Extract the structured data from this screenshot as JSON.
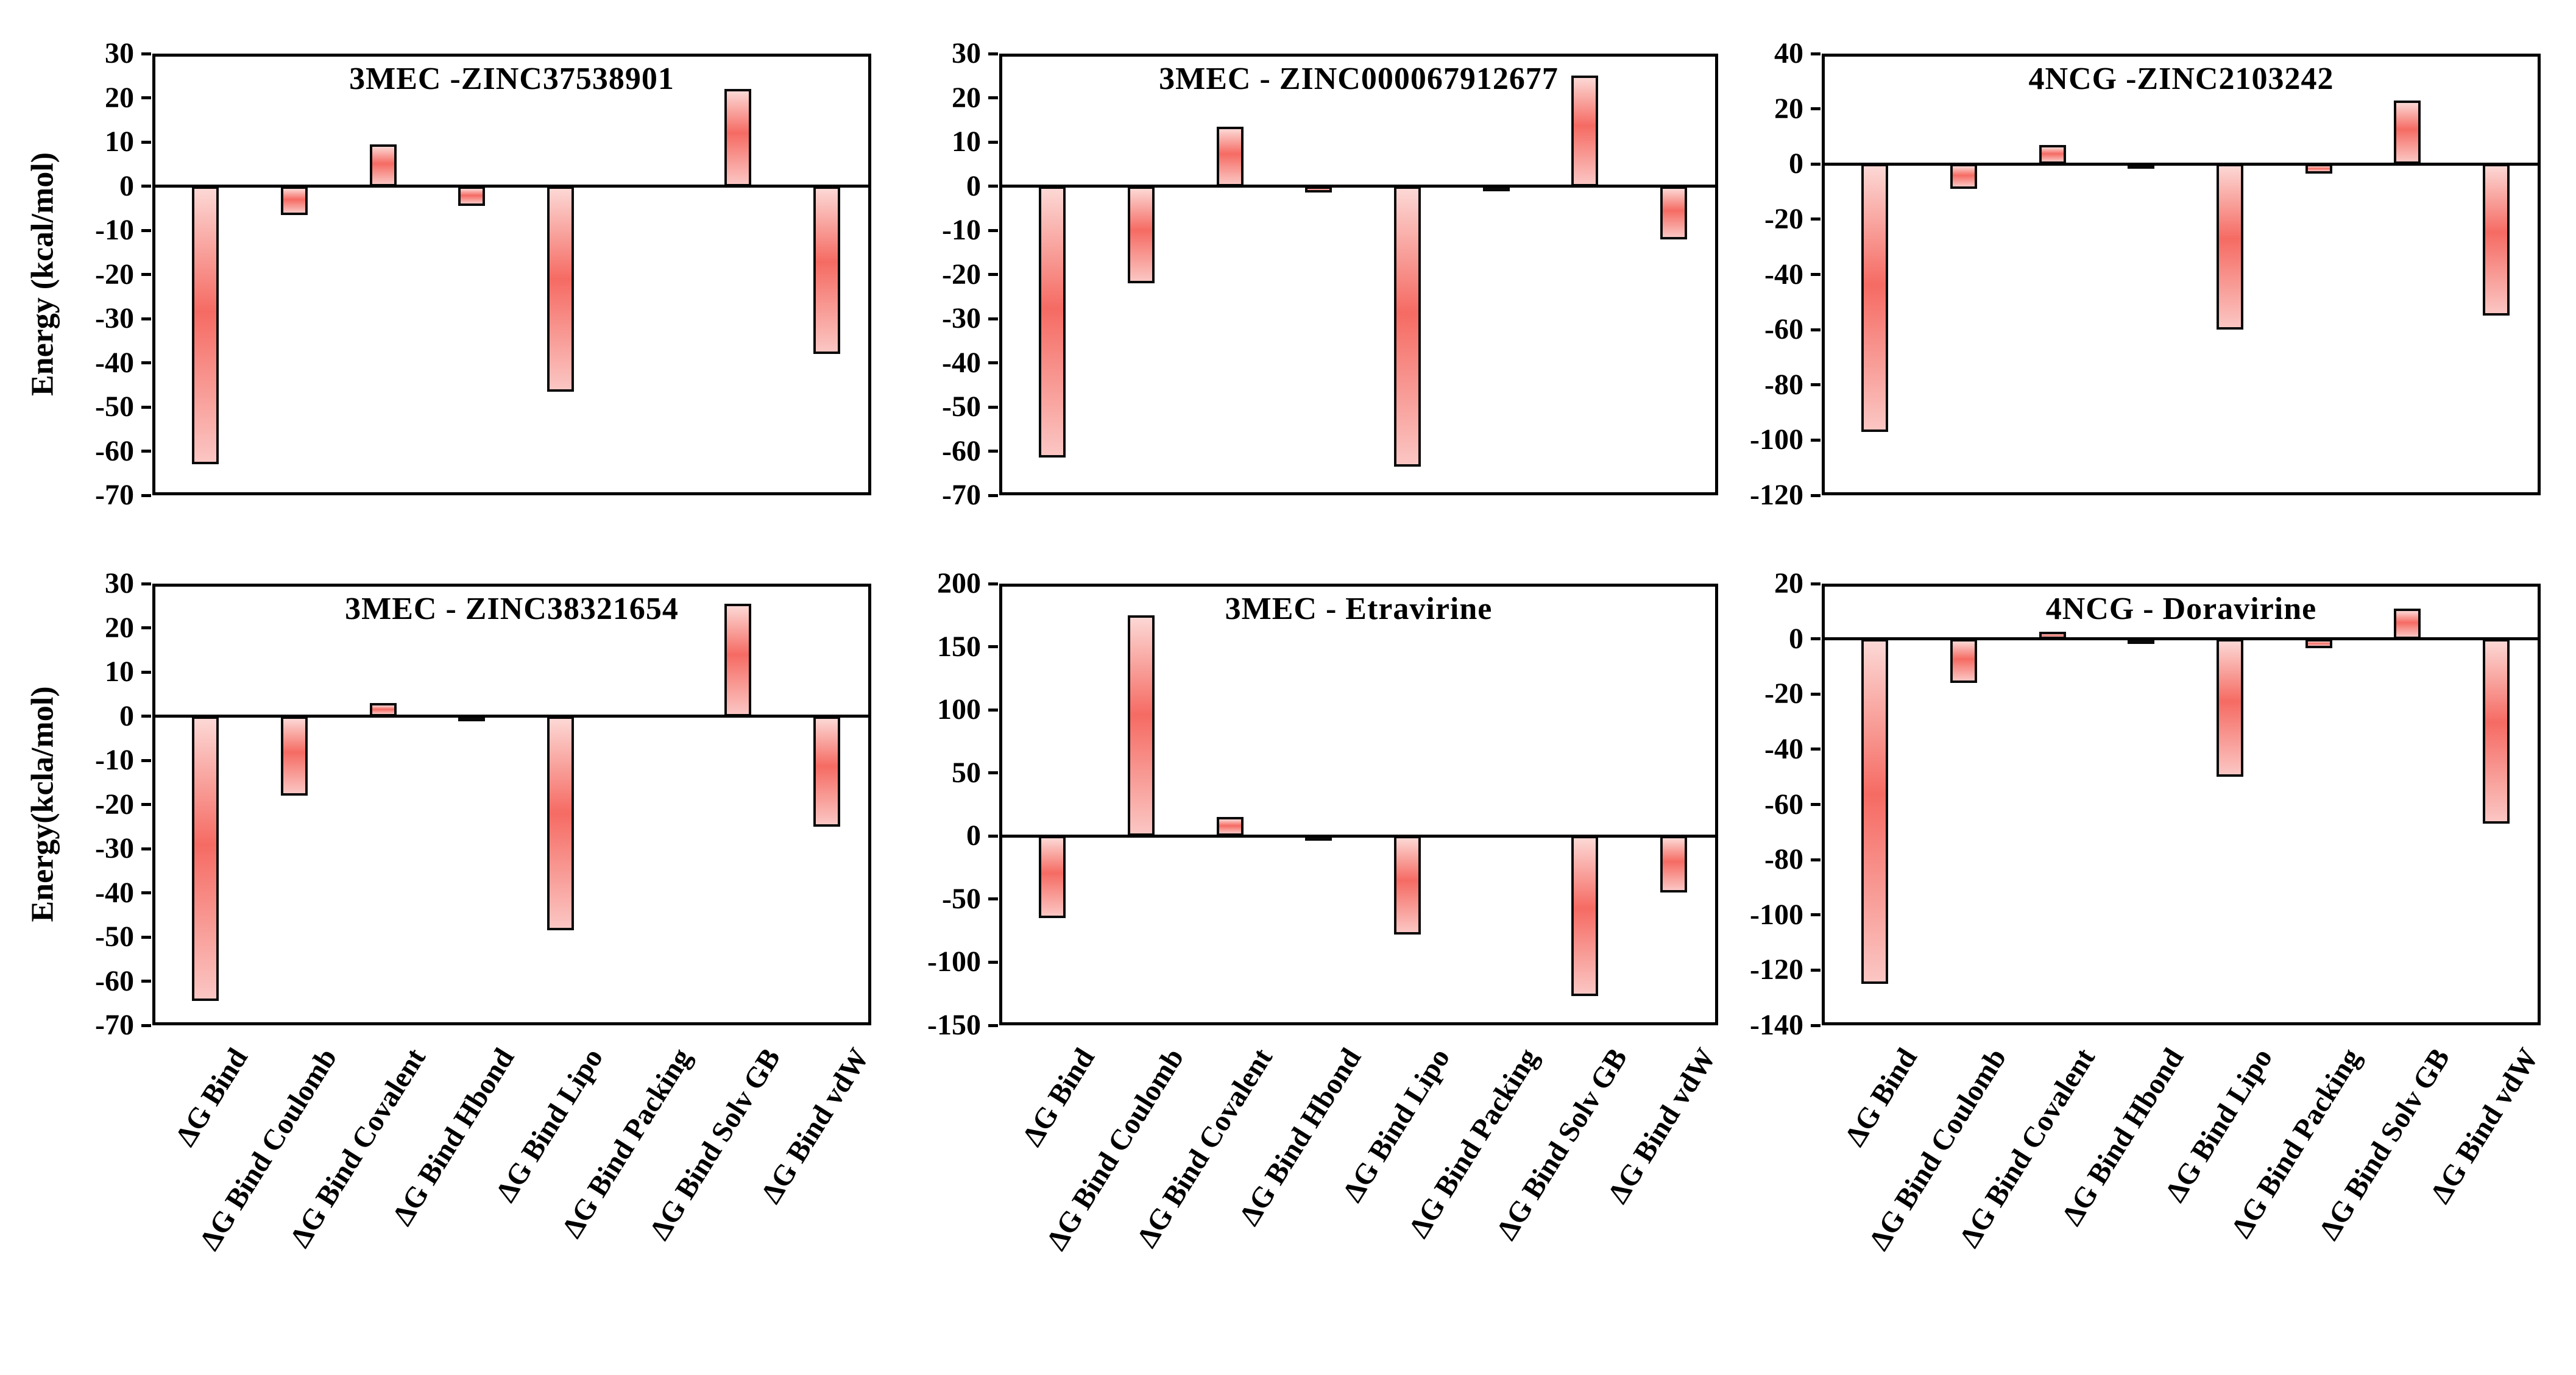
{
  "figure": {
    "description_title_row1": [
      "3MEC -ZINC37538901",
      "3MEC - ZINC000067912677",
      "4NCG -ZINC2103242"
    ],
    "description_title_row2": [
      "3MEC - ZINC38321654",
      "3MEC - Etravirine",
      "4NCG - Doravirine"
    ],
    "background": "#ffffff"
  },
  "style": {
    "bar_fill_top": "#fcd8d5",
    "bar_fill_mid": "#f56b63",
    "bar_fill_bottom": "#fbc6c3",
    "bar_border": "#0a0a0a",
    "axis_color": "#000000",
    "text_color": "#000000"
  },
  "categories": [
    "ΔG Bind",
    "ΔG Bind Coulomb",
    "ΔG Bind Covalent",
    "ΔG Bind Hbond",
    "ΔG Bind Lipo",
    "ΔG Bind Packing",
    "ΔG Bind Solv GB",
    "ΔG Bind vdW"
  ],
  "chart_data": [
    {
      "type": "bar",
      "title": "3MEC -ZINC37538901",
      "ylabel": "Energy (kcal/mol)",
      "xlabel": "",
      "ylim": [
        -70,
        30
      ],
      "ytick_step": 10,
      "yticks": [
        30,
        20,
        10,
        0,
        -10,
        -20,
        -30,
        -40,
        -50,
        -60,
        -70
      ],
      "categories": [
        "ΔG Bind",
        "ΔG Bind Coulomb",
        "ΔG Bind Covalent",
        "ΔG Bind Hbond",
        "ΔG Bind Lipo",
        "ΔG Bind Packing",
        "ΔG Bind Solv GB",
        "ΔG Bind vdW"
      ],
      "values": [
        -63,
        -6.5,
        9.5,
        -4.5,
        -46.5,
        0,
        22,
        -38
      ],
      "grid": false,
      "legend": "none"
    },
    {
      "type": "bar",
      "title": "3MEC - ZINC000067912677",
      "ylabel": null,
      "xlabel": "",
      "ylim": [
        -70,
        30
      ],
      "ytick_step": 10,
      "yticks": [
        30,
        20,
        10,
        0,
        -10,
        -20,
        -30,
        -40,
        -50,
        -60,
        -70
      ],
      "categories": [
        "ΔG Bind",
        "ΔG Bind Coulomb",
        "ΔG Bind Covalent",
        "ΔG Bind Hbond",
        "ΔG Bind Lipo",
        "ΔG Bind Packing",
        "ΔG Bind Solv GB",
        "ΔG Bind vdW"
      ],
      "values": [
        -61.5,
        -22,
        13.5,
        -1.5,
        -63.5,
        -0.8,
        25,
        -12
      ],
      "grid": false,
      "legend": "none"
    },
    {
      "type": "bar",
      "title": "4NCG -ZINC2103242",
      "ylabel": null,
      "xlabel": "",
      "ylim": [
        -120,
        40
      ],
      "ytick_step": 20,
      "yticks": [
        40,
        20,
        0,
        -20,
        -40,
        -60,
        -80,
        -100,
        -120
      ],
      "categories": [
        "ΔG Bind",
        "ΔG Bind Coulomb",
        "ΔG Bind Covalent",
        "ΔG Bind Hbond",
        "ΔG Bind Lipo",
        "ΔG Bind Packing",
        "ΔG Bind Solv GB",
        "ΔG Bind vdW"
      ],
      "values": [
        -97,
        -9,
        7,
        -1.5,
        -60,
        -3.5,
        23,
        -55
      ],
      "grid": false,
      "legend": "none"
    },
    {
      "type": "bar",
      "title": "3MEC - ZINC38321654",
      "ylabel": "Energy(kcla/mol)",
      "xlabel": "",
      "ylim": [
        -70,
        30
      ],
      "ytick_step": 10,
      "yticks": [
        30,
        20,
        10,
        0,
        -10,
        -20,
        -30,
        -40,
        -50,
        -60,
        -70
      ],
      "categories": [
        "ΔG Bind",
        "ΔG Bind Coulomb",
        "ΔG Bind Covalent",
        "ΔG Bind Hbond",
        "ΔG Bind Lipo",
        "ΔG Bind Packing",
        "ΔG Bind Solv GB",
        "ΔG Bind vdW"
      ],
      "values": [
        -64.5,
        -18,
        3,
        -1.2,
        -48.5,
        0,
        25.5,
        -25
      ],
      "grid": false,
      "legend": "none"
    },
    {
      "type": "bar",
      "title": "3MEC - Etravirine",
      "ylabel": null,
      "xlabel": "",
      "ylim": [
        -150,
        200
      ],
      "ytick_step": 50,
      "yticks": [
        200,
        150,
        100,
        50,
        0,
        -50,
        -100,
        -150
      ],
      "categories": [
        "ΔG Bind",
        "ΔG Bind Coulomb",
        "ΔG Bind Covalent",
        "ΔG Bind Hbond",
        "ΔG Bind Lipo",
        "ΔG Bind Packing",
        "ΔG Bind Solv GB",
        "ΔG Bind vdW"
      ],
      "values": [
        -65,
        175,
        15,
        -2.5,
        -78,
        0,
        -127,
        -45
      ],
      "grid": false,
      "legend": "none"
    },
    {
      "type": "bar",
      "title": "4NCG - Doravirine",
      "ylabel": null,
      "xlabel": "",
      "ylim": [
        -140,
        20
      ],
      "ytick_step": 20,
      "yticks": [
        20,
        0,
        -20,
        -40,
        -60,
        -80,
        -100,
        -120,
        -140
      ],
      "categories": [
        "ΔG Bind",
        "ΔG Bind Coulomb",
        "ΔG Bind Covalent",
        "ΔG Bind Hbond",
        "ΔG Bind Lipo",
        "ΔG Bind Packing",
        "ΔG Bind Solv GB",
        "ΔG Bind vdW"
      ],
      "values": [
        -125,
        -16,
        2.5,
        -1.5,
        -50,
        -3.5,
        11,
        -67
      ],
      "grid": false,
      "legend": "none"
    }
  ]
}
